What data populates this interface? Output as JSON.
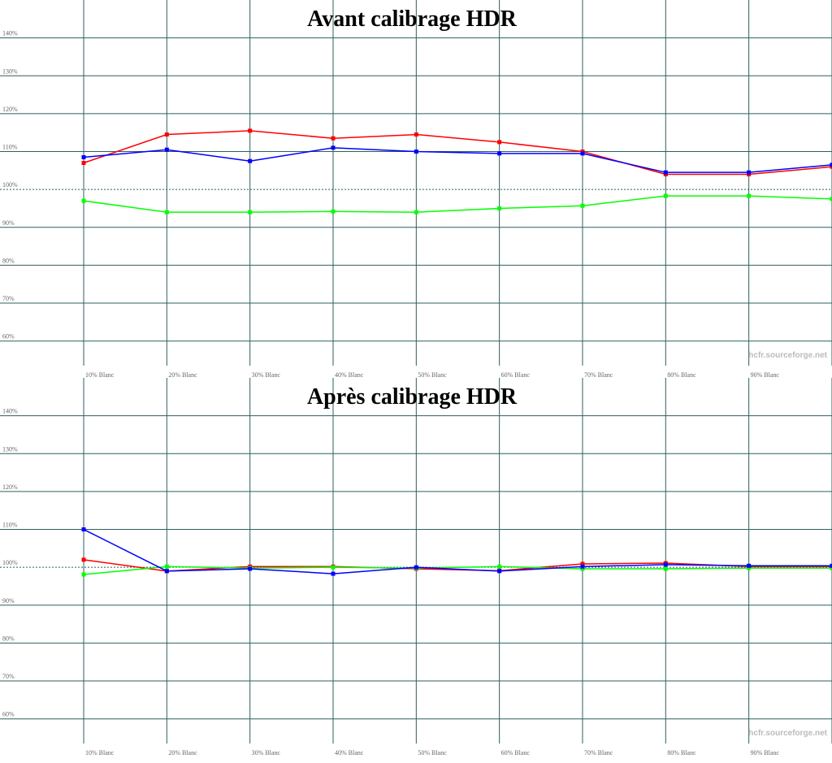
{
  "chart_data": [
    {
      "type": "line",
      "title": "Avant calibrage HDR",
      "annotation": "hcfr.sourceforge.net",
      "categories": [
        "10% Blanc",
        "20% Blanc",
        "30% Blanc",
        "40% Blanc",
        "50% Blanc",
        "60% Blanc",
        "70% Blanc",
        "80% Blanc",
        "90% Blanc",
        null
      ],
      "series": [
        {
          "color": "#ff0000",
          "values": [
            107,
            114.5,
            115.5,
            113.5,
            114.5,
            112.5,
            110,
            104,
            104,
            106
          ]
        },
        {
          "color": "#0000ff",
          "values": [
            108.5,
            110.5,
            107.5,
            111,
            110,
            109.5,
            109.5,
            104.5,
            104.5,
            106.5
          ]
        },
        {
          "color": "#00ff00",
          "values": [
            97,
            94,
            94,
            94.2,
            94,
            95,
            95.7,
            98.3,
            98.3,
            97.5
          ]
        }
      ],
      "ylim": [
        53.5,
        150
      ],
      "yticks": [
        {
          "value": 60,
          "label": "60%"
        },
        {
          "value": 70,
          "label": "70%"
        },
        {
          "value": 80,
          "label": "80%"
        },
        {
          "value": 90,
          "label": "90%"
        },
        {
          "value": 100,
          "label": "100%"
        },
        {
          "value": 110,
          "label": "110%"
        },
        {
          "value": 120,
          "label": "120%"
        },
        {
          "value": 130,
          "label": "130%"
        },
        {
          "value": 140,
          "label": "140%"
        }
      ],
      "reference": 100,
      "grid": true
    },
    {
      "type": "line",
      "title": "Après calibrage HDR",
      "annotation": "hcfr.sourceforge.net",
      "categories": [
        "10% Blanc",
        "20% Blanc",
        "30% Blanc",
        "40% Blanc",
        "50% Blanc",
        "60% Blanc",
        "70% Blanc",
        "80% Blanc",
        "90% Blanc",
        null
      ],
      "series": [
        {
          "color": "#ff0000",
          "values": [
            102,
            99,
            100.2,
            100.2,
            99.6,
            99.1,
            100.9,
            101.1,
            100.2,
            100.2
          ]
        },
        {
          "color": "#00ff00",
          "values": [
            98.1,
            100.2,
            99.8,
            100,
            99.8,
            100.2,
            99.6,
            99.6,
            99.8,
            99.8
          ]
        },
        {
          "color": "#0000ff",
          "values": [
            110,
            99,
            99.6,
            98.3,
            100,
            99,
            100.2,
            100.7,
            100.4,
            100.4
          ]
        }
      ],
      "ylim": [
        53.5,
        150
      ],
      "yticks": [
        {
          "value": 60,
          "label": "60%"
        },
        {
          "value": 70,
          "label": "70%"
        },
        {
          "value": 80,
          "label": "80%"
        },
        {
          "value": 90,
          "label": "90%"
        },
        {
          "value": 100,
          "label": "100%"
        },
        {
          "value": 110,
          "label": "110%"
        },
        {
          "value": 120,
          "label": "120%"
        },
        {
          "value": 130,
          "label": "130%"
        },
        {
          "value": 140,
          "label": "140%"
        }
      ],
      "reference": 100,
      "grid": true
    }
  ]
}
